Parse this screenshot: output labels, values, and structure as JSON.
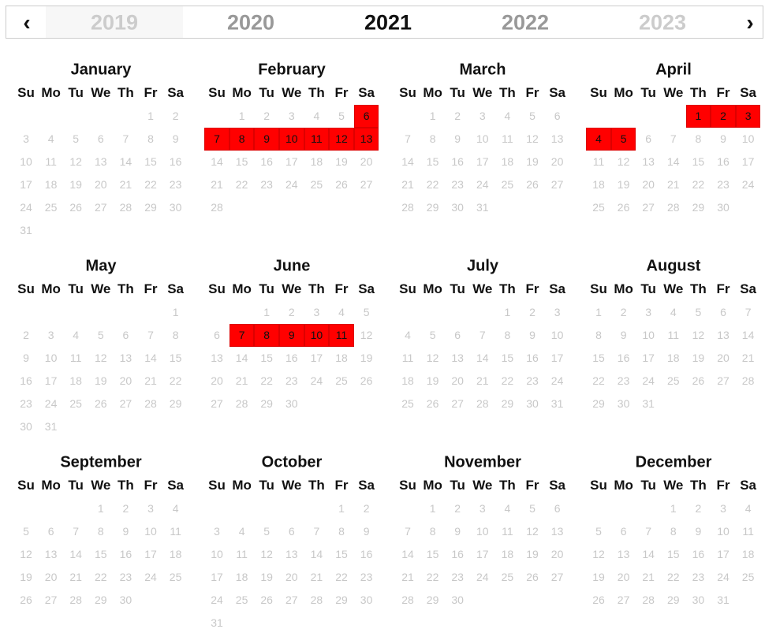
{
  "nav": {
    "prev": "‹",
    "next": "›",
    "years": [
      2019,
      2020,
      2021,
      2022,
      2023
    ],
    "active_year": 2021
  },
  "weekdays": [
    "Su",
    "Mo",
    "Tu",
    "We",
    "Th",
    "Fr",
    "Sa"
  ],
  "months": [
    {
      "name": "January",
      "days": [
        1,
        2,
        3,
        4,
        5,
        6,
        7,
        8,
        9,
        10,
        11,
        12,
        13,
        14,
        15,
        16,
        17,
        18,
        19,
        20,
        21,
        22,
        23,
        24,
        25,
        26,
        27,
        28,
        29,
        30,
        31
      ],
      "selected": []
    },
    {
      "name": "February",
      "days": [
        1,
        2,
        3,
        4,
        5,
        6,
        7,
        8,
        9,
        10,
        11,
        12,
        13,
        14,
        15,
        16,
        17,
        18,
        19,
        20,
        21,
        22,
        23,
        24,
        25,
        26,
        27,
        28
      ],
      "selected": [
        6,
        7,
        8,
        9,
        10,
        11,
        12,
        13
      ]
    },
    {
      "name": "March",
      "days": [
        1,
        2,
        3,
        4,
        5,
        6,
        7,
        8,
        9,
        10,
        11,
        12,
        13,
        14,
        15,
        16,
        17,
        18,
        19,
        20,
        21,
        22,
        23,
        24,
        25,
        26,
        27,
        28,
        29,
        30,
        31
      ],
      "selected": []
    },
    {
      "name": "April",
      "days": [
        1,
        2,
        3,
        4,
        5,
        6,
        7,
        8,
        9,
        10,
        11,
        12,
        13,
        14,
        15,
        16,
        17,
        18,
        19,
        20,
        21,
        22,
        23,
        24,
        25,
        26,
        27,
        28,
        29,
        30
      ],
      "selected": [
        1,
        2,
        3,
        4,
        5
      ]
    },
    {
      "name": "May",
      "days": [
        1,
        2,
        3,
        4,
        5,
        6,
        7,
        8,
        9,
        10,
        11,
        12,
        13,
        14,
        15,
        16,
        17,
        18,
        19,
        20,
        21,
        22,
        23,
        24,
        25,
        26,
        27,
        28,
        29,
        30,
        31
      ],
      "selected": []
    },
    {
      "name": "June",
      "days": [
        1,
        2,
        3,
        4,
        5,
        6,
        7,
        8,
        9,
        10,
        11,
        12,
        13,
        14,
        15,
        16,
        17,
        18,
        19,
        20,
        21,
        22,
        23,
        24,
        25,
        26,
        27,
        28,
        29,
        30
      ],
      "selected": [
        7,
        8,
        9,
        10,
        11
      ]
    },
    {
      "name": "July",
      "days": [
        1,
        2,
        3,
        4,
        5,
        6,
        7,
        8,
        9,
        10,
        11,
        12,
        13,
        14,
        15,
        16,
        17,
        18,
        19,
        20,
        21,
        22,
        23,
        24,
        25,
        26,
        27,
        28,
        29,
        30,
        31
      ],
      "selected": []
    },
    {
      "name": "August",
      "days": [
        1,
        2,
        3,
        4,
        5,
        6,
        7,
        8,
        9,
        10,
        11,
        12,
        13,
        14,
        15,
        16,
        17,
        18,
        19,
        20,
        21,
        22,
        23,
        24,
        25,
        26,
        27,
        28,
        29,
        30,
        31
      ],
      "selected": []
    },
    {
      "name": "September",
      "days": [
        1,
        2,
        3,
        4,
        5,
        6,
        7,
        8,
        9,
        10,
        11,
        12,
        13,
        14,
        15,
        16,
        17,
        18,
        19,
        20,
        21,
        22,
        23,
        24,
        25,
        26,
        27,
        28,
        29,
        30
      ],
      "selected": []
    },
    {
      "name": "October",
      "days": [
        1,
        2,
        3,
        4,
        5,
        6,
        7,
        8,
        9,
        10,
        11,
        12,
        13,
        14,
        15,
        16,
        17,
        18,
        19,
        20,
        21,
        22,
        23,
        24,
        25,
        26,
        27,
        28,
        29,
        30,
        31
      ],
      "selected": []
    },
    {
      "name": "November",
      "days": [
        1,
        2,
        3,
        4,
        5,
        6,
        7,
        8,
        9,
        10,
        11,
        12,
        13,
        14,
        15,
        16,
        17,
        18,
        19,
        20,
        21,
        22,
        23,
        24,
        25,
        26,
        27,
        28,
        29,
        30
      ],
      "selected": []
    },
    {
      "name": "December",
      "days": [
        1,
        2,
        3,
        4,
        5,
        6,
        7,
        8,
        9,
        10,
        11,
        12,
        13,
        14,
        15,
        16,
        17,
        18,
        19,
        20,
        21,
        22,
        23,
        24,
        25,
        26,
        27,
        28,
        29,
        30,
        31
      ],
      "selected": []
    }
  ]
}
